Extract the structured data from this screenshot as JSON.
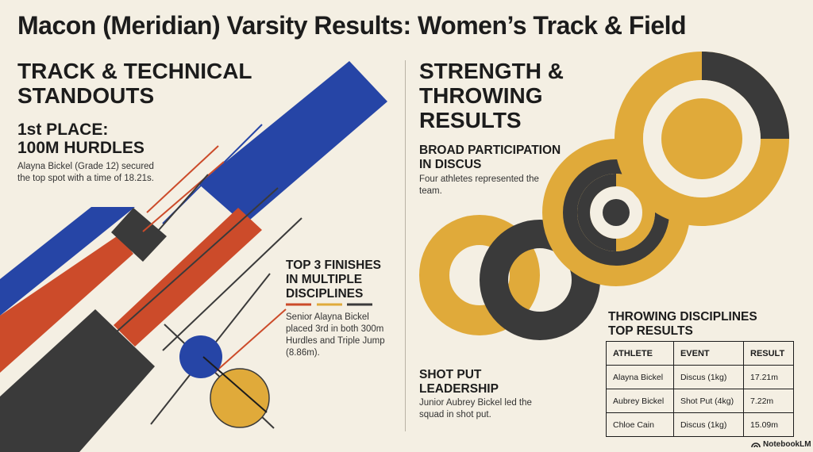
{
  "page": {
    "title": "Macon (Meridian) Varsity Results: Women’s Track & Field",
    "brand": "NotebookLM"
  },
  "left": {
    "section_title_1": "TRACK & TECHNICAL",
    "section_title_2": "STANDOUTS",
    "hurdles": {
      "title_1": "1st PLACE:",
      "title_2": "100M HURDLES",
      "body_1": "Alayna Bickel (Grade 12) secured",
      "body_2": "the top spot with a time of 18.21s."
    },
    "top3": {
      "title_1": "TOP 3 FINISHES",
      "title_2": "IN MULTIPLE",
      "title_3": "DISCIPLINES",
      "body_1": "Senior Alayna Bickel",
      "body_2": "placed 3rd in both 300m",
      "body_3": "Hurdles and Triple Jump",
      "body_4": "(8.86m)."
    }
  },
  "right": {
    "section_title_1": "STRENGTH &",
    "section_title_2": "THROWING",
    "section_title_3": "RESULTS",
    "discus": {
      "title_1": "BROAD PARTICIPATION",
      "title_2": "IN DISCUS",
      "body_1": "Four athletes represented the",
      "body_2": "team."
    },
    "shotput": {
      "title_1": "SHOT PUT",
      "title_2": "LEADERSHIP",
      "body_1": "Junior Aubrey Bickel led the",
      "body_2": "squad in shot put."
    },
    "table": {
      "title_1": "THROWING DISCIPLINES",
      "title_2": "TOP RESULTS",
      "headers": [
        "ATHLETE",
        "EVENT",
        "RESULT"
      ],
      "rows": [
        [
          "Alayna Bickel",
          "Discus (1kg)",
          "17.21m"
        ],
        [
          "Aubrey Bickel",
          "Shot Put (4kg)",
          "7.22m"
        ],
        [
          "Chloe Cain",
          "Discus (1kg)",
          "15.09m"
        ]
      ]
    }
  },
  "colors": {
    "background": "#f4efe3",
    "blue": "#2645a6",
    "orange": "#cc4b2a",
    "charcoal": "#3a3a3a",
    "gold": "#e0aa3a"
  }
}
